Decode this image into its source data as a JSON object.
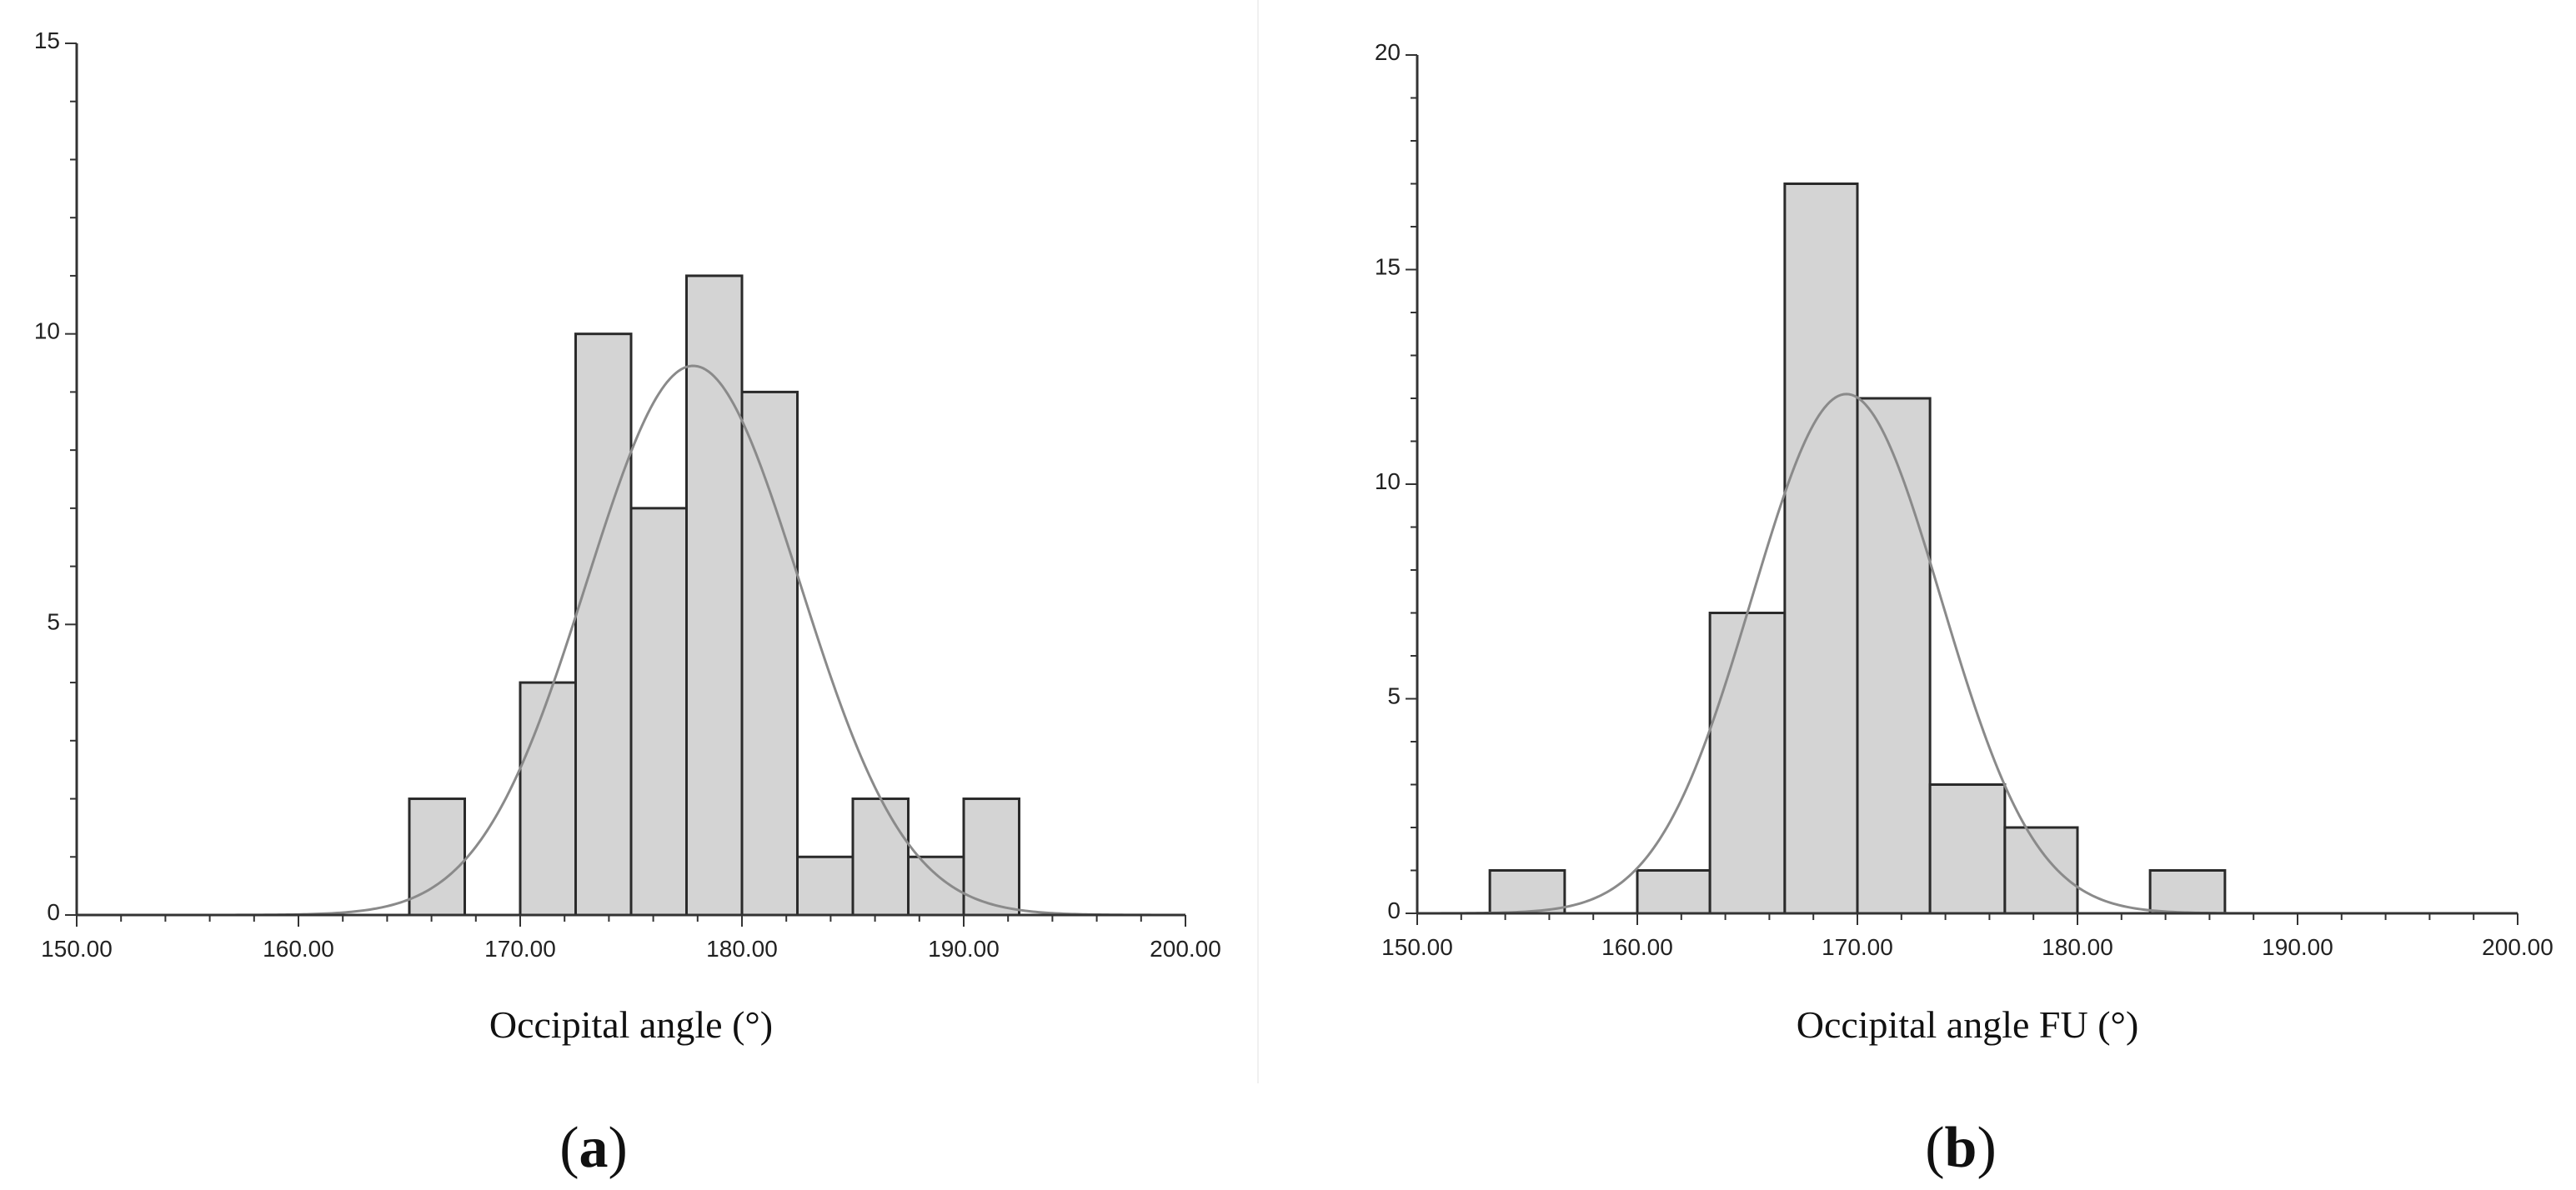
{
  "colors": {
    "bar_fill": "#d4d4d4",
    "bar_stroke": "#2a2a2a",
    "curve": "#8a8a8a",
    "axis": "#333333"
  },
  "chart_data": [
    {
      "type": "bar",
      "subtype": "histogram-with-normal-curve",
      "xlabel": "Occipital angle (°)",
      "panel_label": "a",
      "xlim": [
        150,
        200
      ],
      "ylim": [
        0,
        15
      ],
      "x_ticks": [
        "150.00",
        "160.00",
        "170.00",
        "180.00",
        "190.00",
        "200.00"
      ],
      "y_ticks": [
        "0",
        "5",
        "10",
        "15"
      ],
      "bins": [
        {
          "x0": 165.0,
          "x1": 167.5,
          "count": 2
        },
        {
          "x0": 170.0,
          "x1": 172.5,
          "count": 4
        },
        {
          "x0": 172.5,
          "x1": 175.0,
          "count": 10
        },
        {
          "x0": 175.0,
          "x1": 177.5,
          "count": 7
        },
        {
          "x0": 177.5,
          "x1": 180.0,
          "count": 11
        },
        {
          "x0": 180.0,
          "x1": 182.5,
          "count": 9
        },
        {
          "x0": 182.5,
          "x1": 185.0,
          "count": 1
        },
        {
          "x0": 185.0,
          "x1": 187.5,
          "count": 2
        },
        {
          "x0": 187.5,
          "x1": 190.0,
          "count": 1
        },
        {
          "x0": 190.0,
          "x1": 192.5,
          "count": 2
        }
      ],
      "normal_curve": {
        "mean": 177.8,
        "sd": 4.8,
        "peak": 9.45
      },
      "grid": false
    },
    {
      "type": "bar",
      "subtype": "histogram-with-normal-curve",
      "xlabel": "Occipital angle  FU (°)",
      "panel_label": "b",
      "xlim": [
        150,
        200
      ],
      "ylim": [
        0,
        20
      ],
      "x_ticks": [
        "150.00",
        "160.00",
        "170.00",
        "180.00",
        "190.00",
        "200.00"
      ],
      "y_ticks": [
        "0",
        "5",
        "10",
        "15",
        "20"
      ],
      "bins": [
        {
          "x0": 153.3,
          "x1": 156.7,
          "count": 1
        },
        {
          "x0": 160.0,
          "x1": 163.3,
          "count": 1
        },
        {
          "x0": 163.3,
          "x1": 166.7,
          "count": 7
        },
        {
          "x0": 166.7,
          "x1": 170.0,
          "count": 17
        },
        {
          "x0": 170.0,
          "x1": 173.3,
          "count": 12
        },
        {
          "x0": 173.3,
          "x1": 176.7,
          "count": 3
        },
        {
          "x0": 176.7,
          "x1": 180.0,
          "count": 2
        },
        {
          "x0": 183.3,
          "x1": 186.7,
          "count": 1
        }
      ],
      "normal_curve": {
        "mean": 169.5,
        "sd": 4.3,
        "peak": 12.1
      },
      "grid": false
    }
  ]
}
